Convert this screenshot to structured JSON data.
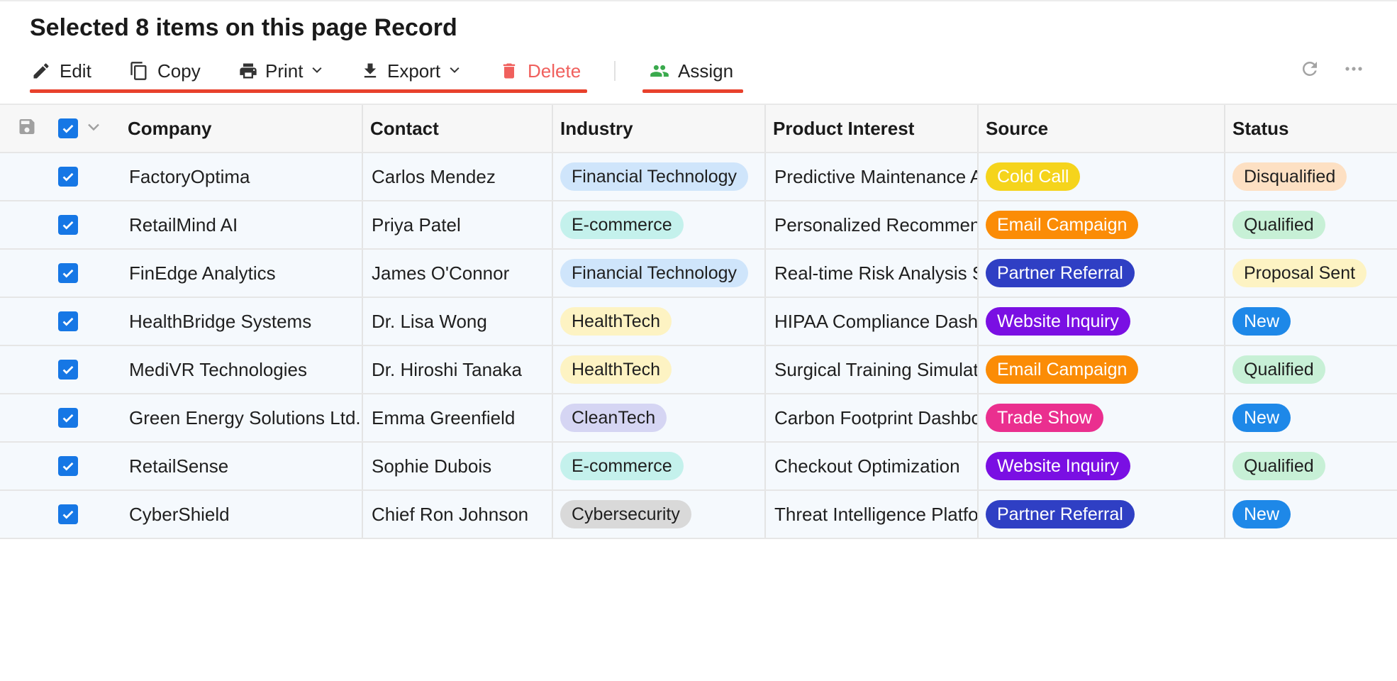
{
  "header": {
    "title": "Selected 8 items on this page Record"
  },
  "toolbar": {
    "edit_label": "Edit",
    "copy_label": "Copy",
    "print_label": "Print",
    "export_label": "Export",
    "delete_label": "Delete",
    "assign_label": "Assign"
  },
  "colors": {
    "accent": "#1677e5",
    "underline": "#e8412c",
    "delete": "#f0605d",
    "assign_icon": "#3aaa4d"
  },
  "table": {
    "columns": {
      "company": "Company",
      "contact": "Contact",
      "industry": "Industry",
      "product": "Product Interest",
      "source": "Source",
      "status": "Status"
    },
    "rows": [
      {
        "company": "FactoryOptima",
        "contact": "Carlos Mendez",
        "industry": "Financial Technology",
        "industry_bg": "#cfe5fb",
        "product": "Predictive Maintenance AI",
        "source": "Cold Call",
        "source_bg": "#f5d41c",
        "status": "Disqualified",
        "status_bg": "#fde0c3"
      },
      {
        "company": "RetailMind AI",
        "contact": "Priya Patel",
        "industry": "E-commerce",
        "industry_bg": "#c4f1ec",
        "product": "Personalized Recommendation Engine",
        "source": "Email Campaign",
        "source_bg": "#fb8c06",
        "status": "Qualified",
        "status_bg": "#c7f0d6"
      },
      {
        "company": "FinEdge Analytics",
        "contact": "James O'Connor",
        "industry": "Financial Technology",
        "industry_bg": "#cfe5fb",
        "product": "Real-time Risk Analysis Suite",
        "source": "Partner Referral",
        "source_bg": "#2f3fc4",
        "status": "Proposal Sent",
        "status_bg": "#fdf3c3"
      },
      {
        "company": "HealthBridge Systems",
        "contact": "Dr. Lisa Wong",
        "industry": "HealthTech",
        "industry_bg": "#fdf3c3",
        "product": "HIPAA Compliance Dashboard",
        "source": "Website Inquiry",
        "source_bg": "#7a0fe3",
        "status": "New",
        "status_bg": "#1e88e8"
      },
      {
        "company": "MediVR Technologies",
        "contact": "Dr. Hiroshi Tanaka",
        "industry": "HealthTech",
        "industry_bg": "#fdf3c3",
        "product": "Surgical Training Simulator",
        "source": "Email Campaign",
        "source_bg": "#fb8c06",
        "status": "Qualified",
        "status_bg": "#c7f0d6"
      },
      {
        "company": "Green Energy Solutions Ltd.",
        "contact": "Emma Greenfield",
        "industry": "CleanTech",
        "industry_bg": "#d5d5f3",
        "product": "Carbon Footprint Dashboard",
        "source": "Trade Show",
        "source_bg": "#ea2f8f",
        "status": "New",
        "status_bg": "#1e88e8"
      },
      {
        "company": "RetailSense",
        "contact": "Sophie Dubois",
        "industry": "E-commerce",
        "industry_bg": "#c4f1ec",
        "product": "Checkout Optimization",
        "source": "Website Inquiry",
        "source_bg": "#7a0fe3",
        "status": "Qualified",
        "status_bg": "#c7f0d6"
      },
      {
        "company": "CyberShield",
        "contact": "Chief Ron Johnson",
        "industry": "Cybersecurity",
        "industry_bg": "#d9d9d9",
        "product": "Threat Intelligence Platform",
        "source": "Partner Referral",
        "source_bg": "#2f3fc4",
        "status": "New",
        "status_bg": "#1e88e8"
      }
    ]
  }
}
